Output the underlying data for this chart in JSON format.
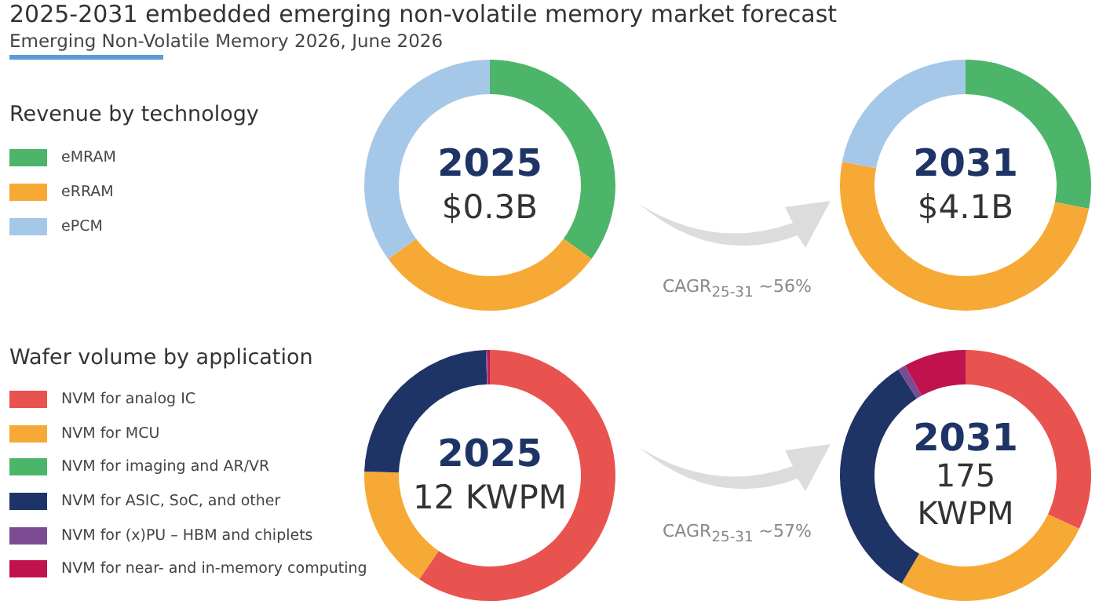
{
  "chart_data": [
    {
      "type": "donut",
      "title": "2025-2031 embedded emerging non-volatile memory  market forecast",
      "subtitle": "Emerging Non-Volatile Memory 2026, June 2026",
      "legend_title": "Revenue by technology",
      "legend": "left",
      "categories": [
        "eMRAM",
        "eRRAM",
        "ePCM"
      ],
      "values": [
        35,
        30,
        35
      ],
      "colors": [
        "#4db56a",
        "#f7a935",
        "#a5c8e8"
      ],
      "annotations": [
        "2025",
        "$0.3B"
      ]
    },
    {
      "type": "donut",
      "categories": [
        null,
        null,
        null
      ],
      "values": [
        28,
        50,
        22
      ],
      "colors": [
        "#4db56a",
        "#f7a935",
        "#a5c8e8"
      ],
      "annotations": [
        "2031",
        "$4.1B",
        "CAGR$_{25-31}$ ~56%"
      ]
    },
    {
      "type": "donut",
      "legend_title": "Wafer volume by application",
      "legend": "left",
      "categories": [
        "NVM for analog IC",
        "NVM for MCU",
        "NVM for imaging and AR/VR",
        "NVM for ASIC, SoC, and other",
        "NVM for (x)PU – HBM and chiplets",
        "NVM for near- and in-memory computing"
      ],
      "values": [
        59.5,
        16,
        0,
        24,
        0.2,
        0.3
      ],
      "colors": [
        "#e9534f",
        "#f7a935",
        "#4db56a",
        "#1f3466",
        "#7b4b94",
        "#c0134e"
      ],
      "annotations": [
        "2025",
        "12 KWPM"
      ]
    },
    {
      "type": "donut",
      "categories": [
        null,
        null,
        null,
        null,
        null,
        null
      ],
      "values": [
        32,
        26.5,
        0,
        32.5,
        1,
        8
      ],
      "colors": [
        "#e9534f",
        "#f7a935",
        "#4db56a",
        "#1f3466",
        "#7b4b94",
        "#c0134e"
      ],
      "annotations": [
        "2031",
        "175",
        "KWPM",
        "CAGR$_{25-31}$ ~57%"
      ]
    }
  ]
}
